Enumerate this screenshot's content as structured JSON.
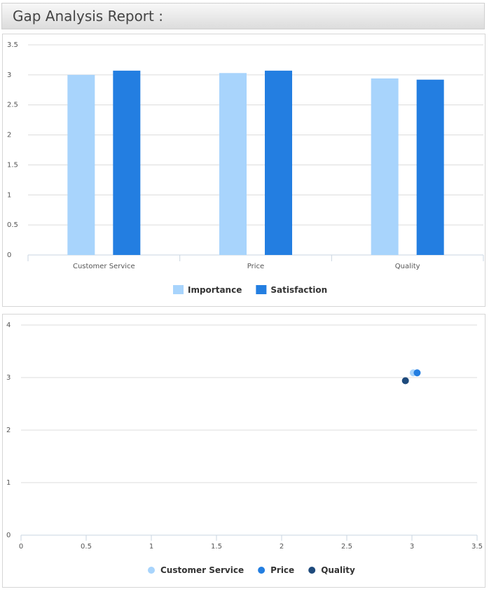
{
  "header": {
    "title": "Gap Analysis Report :"
  },
  "chart_data": [
    {
      "type": "bar",
      "categories": [
        "Customer Service",
        "Price",
        "Quality"
      ],
      "series": [
        {
          "name": "Importance",
          "values": [
            3.0,
            3.03,
            2.94
          ],
          "color": "#a8d4fc"
        },
        {
          "name": "Satisfaction",
          "values": [
            3.07,
            3.07,
            2.92
          ],
          "color": "#237ee1"
        }
      ],
      "ylim": [
        0,
        3.5
      ],
      "yticks": [
        "0",
        "0.5",
        "1",
        "1.5",
        "2",
        "2.5",
        "3",
        "3.5"
      ],
      "grid": true,
      "legend": "bottom-center"
    },
    {
      "type": "scatter",
      "series": [
        {
          "name": "Customer Service",
          "points": [
            [
              3.01,
              3.09
            ]
          ],
          "color": "#a8d4fc"
        },
        {
          "name": "Price",
          "points": [
            [
              3.04,
              3.09
            ]
          ],
          "color": "#237ee1"
        },
        {
          "name": "Quality",
          "points": [
            [
              2.95,
              2.94
            ]
          ],
          "color": "#1e4a7c"
        }
      ],
      "xlim": [
        0,
        3.5
      ],
      "ylim": [
        0,
        4
      ],
      "xticks": [
        "0",
        "0.5",
        "1",
        "1.5",
        "2",
        "2.5",
        "3",
        "3.5"
      ],
      "yticks": [
        "0",
        "1",
        "2",
        "3",
        "4"
      ],
      "grid": true,
      "legend": "bottom-center"
    }
  ]
}
